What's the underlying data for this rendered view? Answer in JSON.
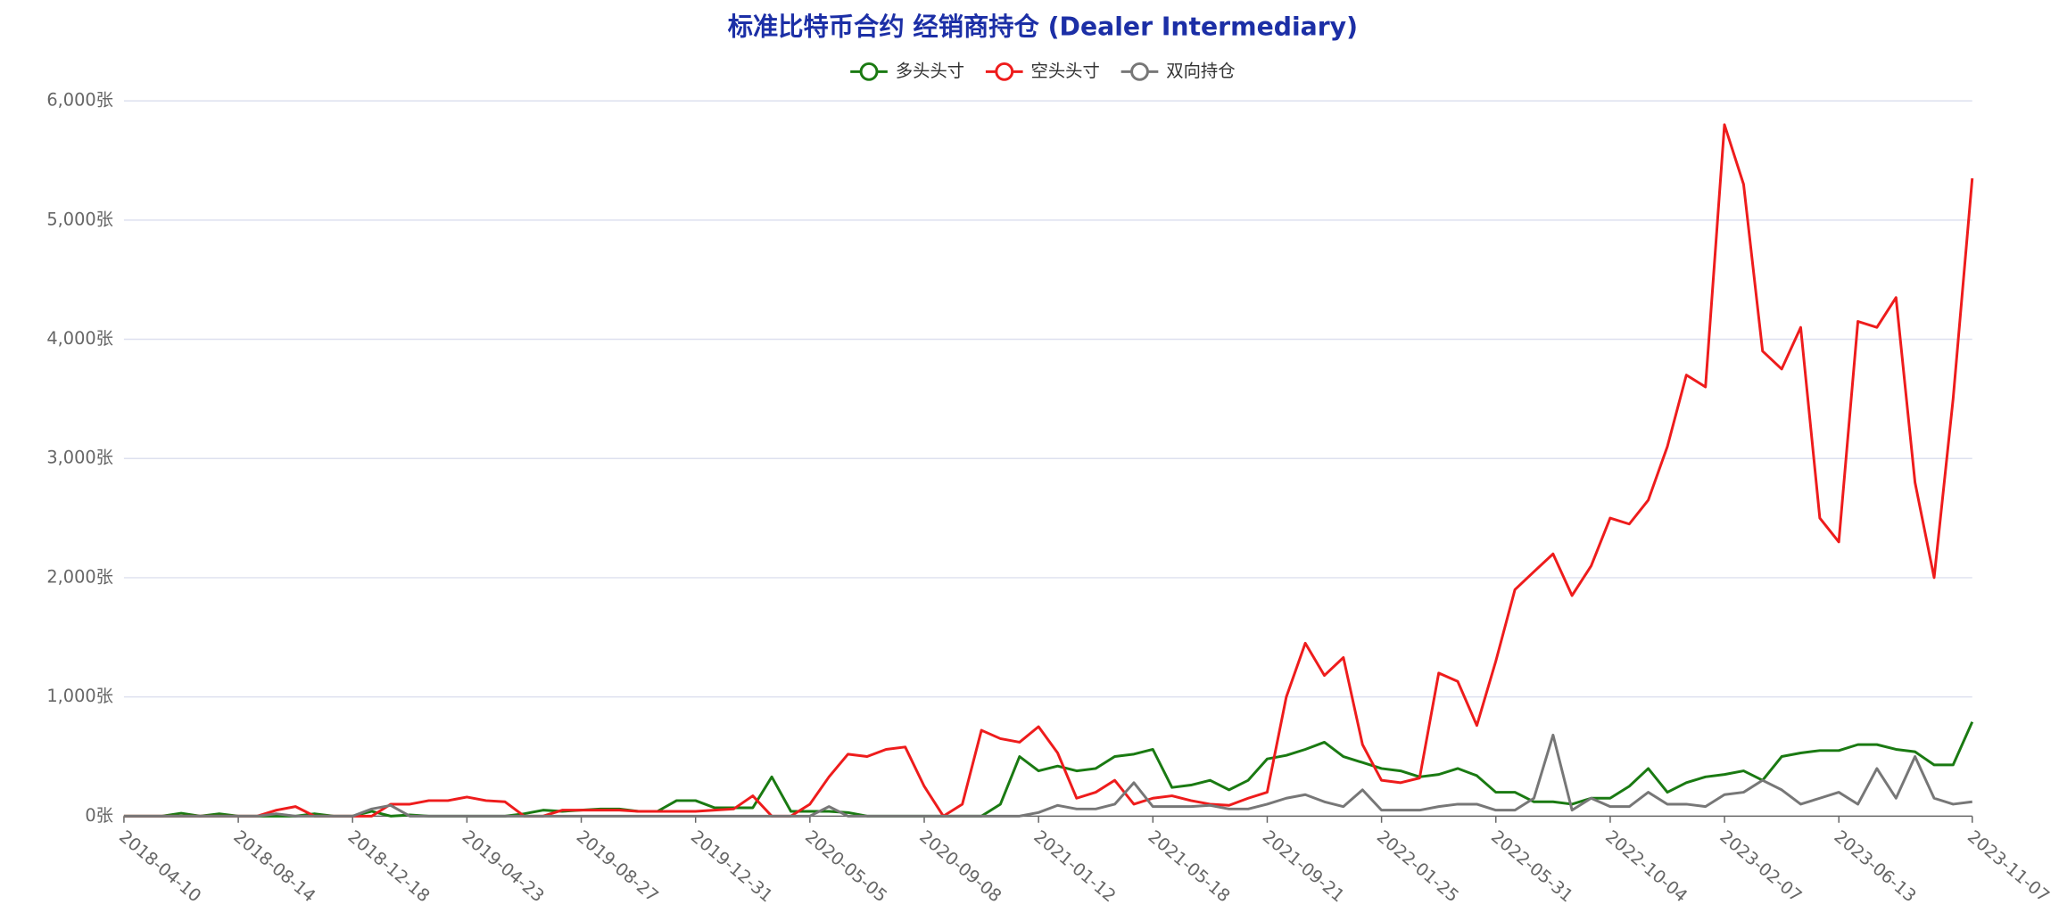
{
  "chart_data": {
    "type": "line",
    "title": "标准比特币合约 经销商持仓 (Dealer Intermediary)",
    "categories": [
      "2018-04-10",
      null,
      null,
      null,
      null,
      null,
      "2018-08-14",
      null,
      null,
      null,
      null,
      null,
      "2018-12-18",
      null,
      null,
      null,
      null,
      null,
      "2019-04-23",
      null,
      null,
      null,
      null,
      null,
      "2019-08-27",
      null,
      null,
      null,
      null,
      null,
      "2019-12-31",
      null,
      null,
      null,
      null,
      null,
      "2020-05-05",
      null,
      null,
      null,
      null,
      null,
      "2020-09-08",
      null,
      null,
      null,
      null,
      null,
      "2021-01-12",
      null,
      null,
      null,
      null,
      null,
      "2021-05-18",
      null,
      null,
      null,
      null,
      null,
      "2021-09-21",
      null,
      null,
      null,
      null,
      null,
      "2022-01-25",
      null,
      null,
      null,
      null,
      null,
      "2022-05-31",
      null,
      null,
      null,
      null,
      null,
      "2022-10-04",
      null,
      null,
      null,
      null,
      null,
      "2023-02-07",
      null,
      null,
      null,
      null,
      null,
      "2023-06-13",
      null,
      null,
      null,
      null,
      null,
      null,
      "2023-11-07"
    ],
    "series": [
      {
        "name": "多头头寸",
        "color": "#1a7a12",
        "values": [
          0,
          0,
          0,
          25,
          0,
          20,
          0,
          0,
          0,
          0,
          20,
          0,
          0,
          40,
          0,
          10,
          0,
          0,
          0,
          0,
          0,
          20,
          50,
          40,
          50,
          60,
          60,
          40,
          40,
          130,
          130,
          70,
          70,
          70,
          330,
          40,
          40,
          40,
          30,
          0,
          0,
          0,
          0,
          0,
          0,
          0,
          100,
          500,
          380,
          420,
          380,
          400,
          500,
          520,
          560,
          240,
          260,
          300,
          220,
          300,
          480,
          510,
          560,
          620,
          500,
          450,
          400,
          380,
          330,
          350,
          400,
          340,
          200,
          200,
          120,
          120,
          100,
          150,
          150,
          250,
          400,
          200,
          280,
          330,
          350,
          380,
          300,
          500,
          530,
          550,
          550,
          600,
          600,
          560,
          540,
          430,
          430,
          790
        ]
      },
      {
        "name": "空头头寸",
        "color": "#ee1c1c",
        "values": [
          0,
          0,
          0,
          0,
          0,
          0,
          0,
          0,
          50,
          80,
          0,
          0,
          0,
          0,
          100,
          100,
          130,
          130,
          160,
          130,
          120,
          0,
          0,
          50,
          50,
          50,
          50,
          40,
          40,
          40,
          40,
          50,
          60,
          170,
          0,
          0,
          100,
          330,
          520,
          500,
          560,
          580,
          250,
          0,
          100,
          720,
          650,
          620,
          750,
          530,
          150,
          200,
          300,
          100,
          150,
          170,
          130,
          100,
          90,
          150,
          200,
          1000,
          1450,
          1180,
          1330,
          600,
          300,
          280,
          320,
          1200,
          1130,
          760,
          1300,
          1900,
          2050,
          2200,
          1850,
          2100,
          2500,
          2450,
          2650,
          3100,
          3700,
          3600,
          5800,
          5300,
          3900,
          3750,
          4100,
          2500,
          2300,
          4150,
          4100,
          4350,
          2800,
          2000,
          3500,
          5350
        ]
      },
      {
        "name": "双向持仓",
        "color": "#777777",
        "values": [
          0,
          0,
          0,
          0,
          0,
          0,
          0,
          0,
          20,
          0,
          0,
          0,
          0,
          60,
          90,
          0,
          0,
          0,
          0,
          0,
          0,
          0,
          0,
          0,
          0,
          0,
          0,
          0,
          0,
          0,
          0,
          0,
          0,
          0,
          0,
          0,
          0,
          80,
          0,
          0,
          0,
          0,
          0,
          0,
          0,
          0,
          0,
          0,
          30,
          90,
          60,
          60,
          100,
          280,
          80,
          80,
          80,
          90,
          60,
          60,
          100,
          150,
          180,
          120,
          80,
          220,
          50,
          50,
          50,
          80,
          100,
          100,
          50,
          50,
          150,
          680,
          50,
          150,
          80,
          80,
          200,
          100,
          100,
          80,
          180,
          200,
          300,
          220,
          100,
          150,
          200,
          100,
          400,
          150,
          500,
          150,
          100,
          120
        ]
      }
    ],
    "ylim": [
      0,
      6000
    ],
    "yticks": [
      {
        "value": 0,
        "label": "0张"
      },
      {
        "value": 1000,
        "label": "1,000张"
      },
      {
        "value": 2000,
        "label": "2,000张"
      },
      {
        "value": 3000,
        "label": "3,000张"
      },
      {
        "value": 4000,
        "label": "4,000张"
      },
      {
        "value": 5000,
        "label": "5,000张"
      },
      {
        "value": 6000,
        "label": "6,000张"
      }
    ],
    "grid": true
  }
}
